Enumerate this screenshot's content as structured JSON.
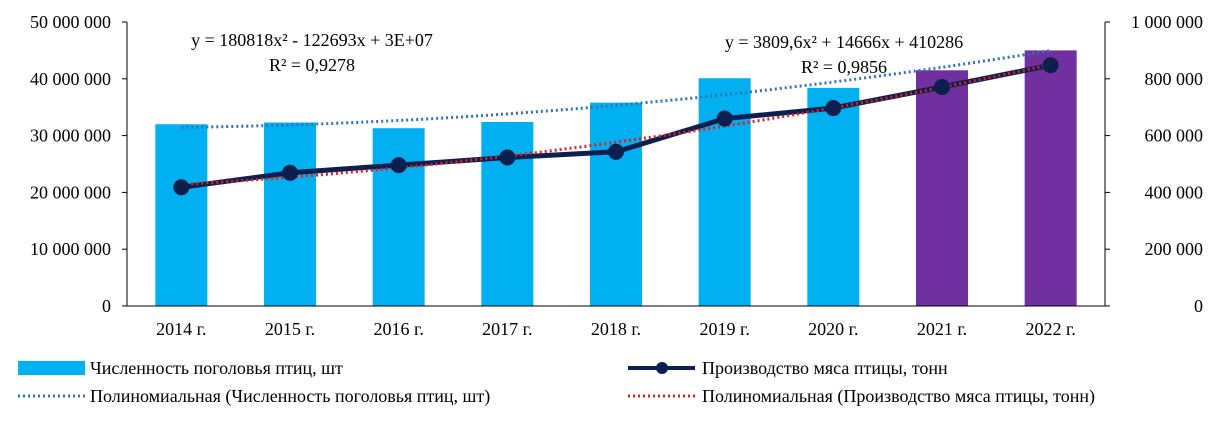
{
  "chart_data": {
    "type": "bar",
    "categories": [
      "2014 г.",
      "2015 г.",
      "2016 г.",
      "2017 г.",
      "2018 г.",
      "2019 г.",
      "2020 г.",
      "2021 г.",
      "2022 г."
    ],
    "series": [
      {
        "name": "Численность поголовья птиц, шт",
        "kind": "bar",
        "axis": "left",
        "values": [
          32000000,
          32300000,
          31300000,
          32400000,
          35800000,
          40100000,
          38400000,
          41500000,
          45000000
        ],
        "colors": [
          "#00B0F0",
          "#00B0F0",
          "#00B0F0",
          "#00B0F0",
          "#00B0F0",
          "#00B0F0",
          "#00B0F0",
          "#7030A0",
          "#7030A0"
        ]
      },
      {
        "name": "Производство мяса птицы, тонн",
        "kind": "line",
        "axis": "right",
        "values": [
          418000,
          469000,
          496000,
          523000,
          543000,
          660000,
          697000,
          771000,
          848000
        ],
        "color": "#0D1F4F"
      }
    ],
    "trendlines": [
      {
        "name": "Полиномиальная (Численность поголовья птиц, шт)",
        "axis": "left",
        "color": "#2E75B6",
        "equation": "y = 180818x² - 122693x + 3E+07",
        "r2": "R² = 0,9278"
      },
      {
        "name": "Полиномиальная (Производство мяса птицы, тонн)",
        "axis": "right",
        "color": "#E02020",
        "equation": "y = 3809,6x² + 14666x + 410286",
        "r2": "R² = 0,9856"
      }
    ],
    "y_left": {
      "min": 0,
      "max": 50000000,
      "ticks": [
        "0",
        "10 000 000",
        "20 000 000",
        "30 000 000",
        "40 000 000",
        "50 000 000"
      ]
    },
    "y_right": {
      "min": 0,
      "max": 1000000,
      "ticks": [
        "0",
        "200 000",
        "400 000",
        "600 000",
        "800 000",
        "1 000 000"
      ]
    },
    "grid": false,
    "legend_position": "bottom"
  }
}
